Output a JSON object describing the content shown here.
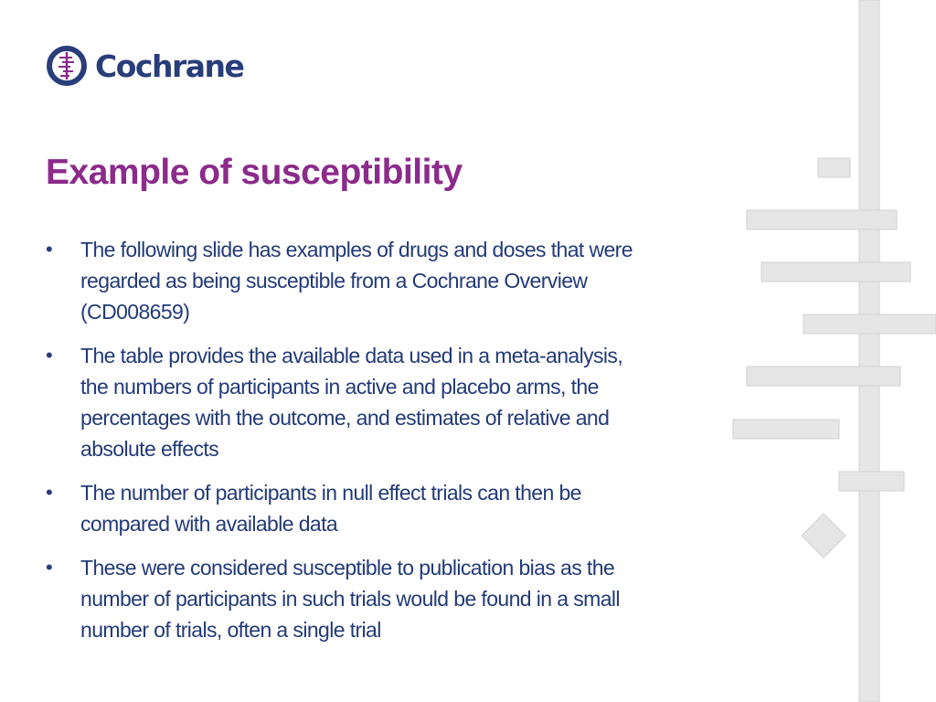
{
  "logo": {
    "text": "Cochrane",
    "color": "#293d7a"
  },
  "slide": {
    "title": "Example of susceptibility",
    "title_color": "#8b2b8a",
    "text_color": "#233a78",
    "bullets": [
      {
        "marker": "•",
        "lines": [
          "The following slide has examples of  drugs and doses that were",
          "regarded as being susceptible  from a Cochrane Overview",
          "(CD008659)"
        ]
      },
      {
        "marker": "•",
        "lines": [
          "The table provides the available data used in a meta-analysis,",
          "the numbers of participants in active and placebo arms, the",
          "percentages with the outcome, and estimates of relative and",
          "absolute effects"
        ]
      },
      {
        "marker": "•",
        "lines": [
          "The number of participants in null effect trials can then be",
          "compared with available data"
        ]
      },
      {
        "marker": "•",
        "lines": [
          "These were considered susceptible to publication bias as the",
          "number of participants in such trials would be found in a small",
          "number of trials, often a single trial"
        ]
      }
    ]
  },
  "decoration": {
    "name": "forest-plot-decoration",
    "color": "#e6e6e6",
    "stroke": "#d2d2d2"
  }
}
